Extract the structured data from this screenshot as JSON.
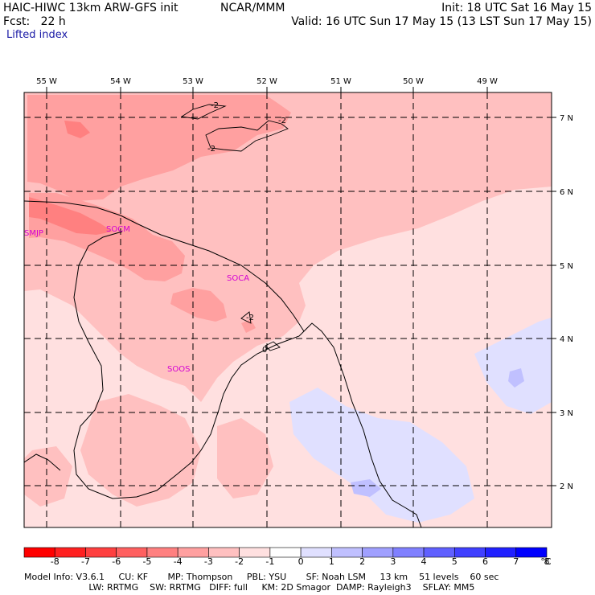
{
  "header": {
    "model": "HAIC-HIWC 13km ARW-GFS init",
    "org": "NCAR/MMM",
    "fcst": "Fcst:   22 h",
    "field": "Lifted index",
    "init": "Init: 18 UTC Sat 16 May 15",
    "valid": "Valid: 16 UTC Sun 17 May 15 (13 LST Sun 17 May 15)"
  },
  "map": {
    "lon_labels": [
      "55 W",
      "54 W",
      "53 W",
      "52 W",
      "51 W",
      "50 W",
      "49 W"
    ],
    "lat_labels": [
      "7 N",
      "6 N",
      "5 N",
      "4 N",
      "3 N",
      "2 N"
    ],
    "stations": [
      "SMJP",
      "SOCM",
      "SOCA",
      "SOOS"
    ],
    "contour_labels": [
      "-2",
      "-2",
      "-2",
      "-2",
      "0"
    ]
  },
  "colorbar": {
    "unit": "°C",
    "tick_labels": [
      "-8",
      "-7",
      "-6",
      "-5",
      "-4",
      "-3",
      "-2",
      "-1",
      "0",
      "1",
      "2",
      "3",
      "4",
      "5",
      "6",
      "7",
      "8"
    ],
    "colors": [
      "#ff0000",
      "#ff2020",
      "#ff4040",
      "#ff6060",
      "#ff8080",
      "#ffa0a0",
      "#ffc0c0",
      "#ffe0e0",
      "#ffffff",
      "#e0e0ff",
      "#c0c0ff",
      "#a0a0ff",
      "#8080ff",
      "#6060ff",
      "#4040ff",
      "#2020ff",
      "#0000ff"
    ]
  },
  "footer": {
    "line1": "Model Info: V3.6.1     CU: KF       MP: Thompson     PBL: YSU       SF: Noah LSM     13 km    51 levels    60 sec",
    "line2": "                       LW: RRTMG    SW: RRTMG   DIFF: full     KM: 2D Smagor  DAMP: Rayleigh3    SFLAY: MM5"
  }
}
